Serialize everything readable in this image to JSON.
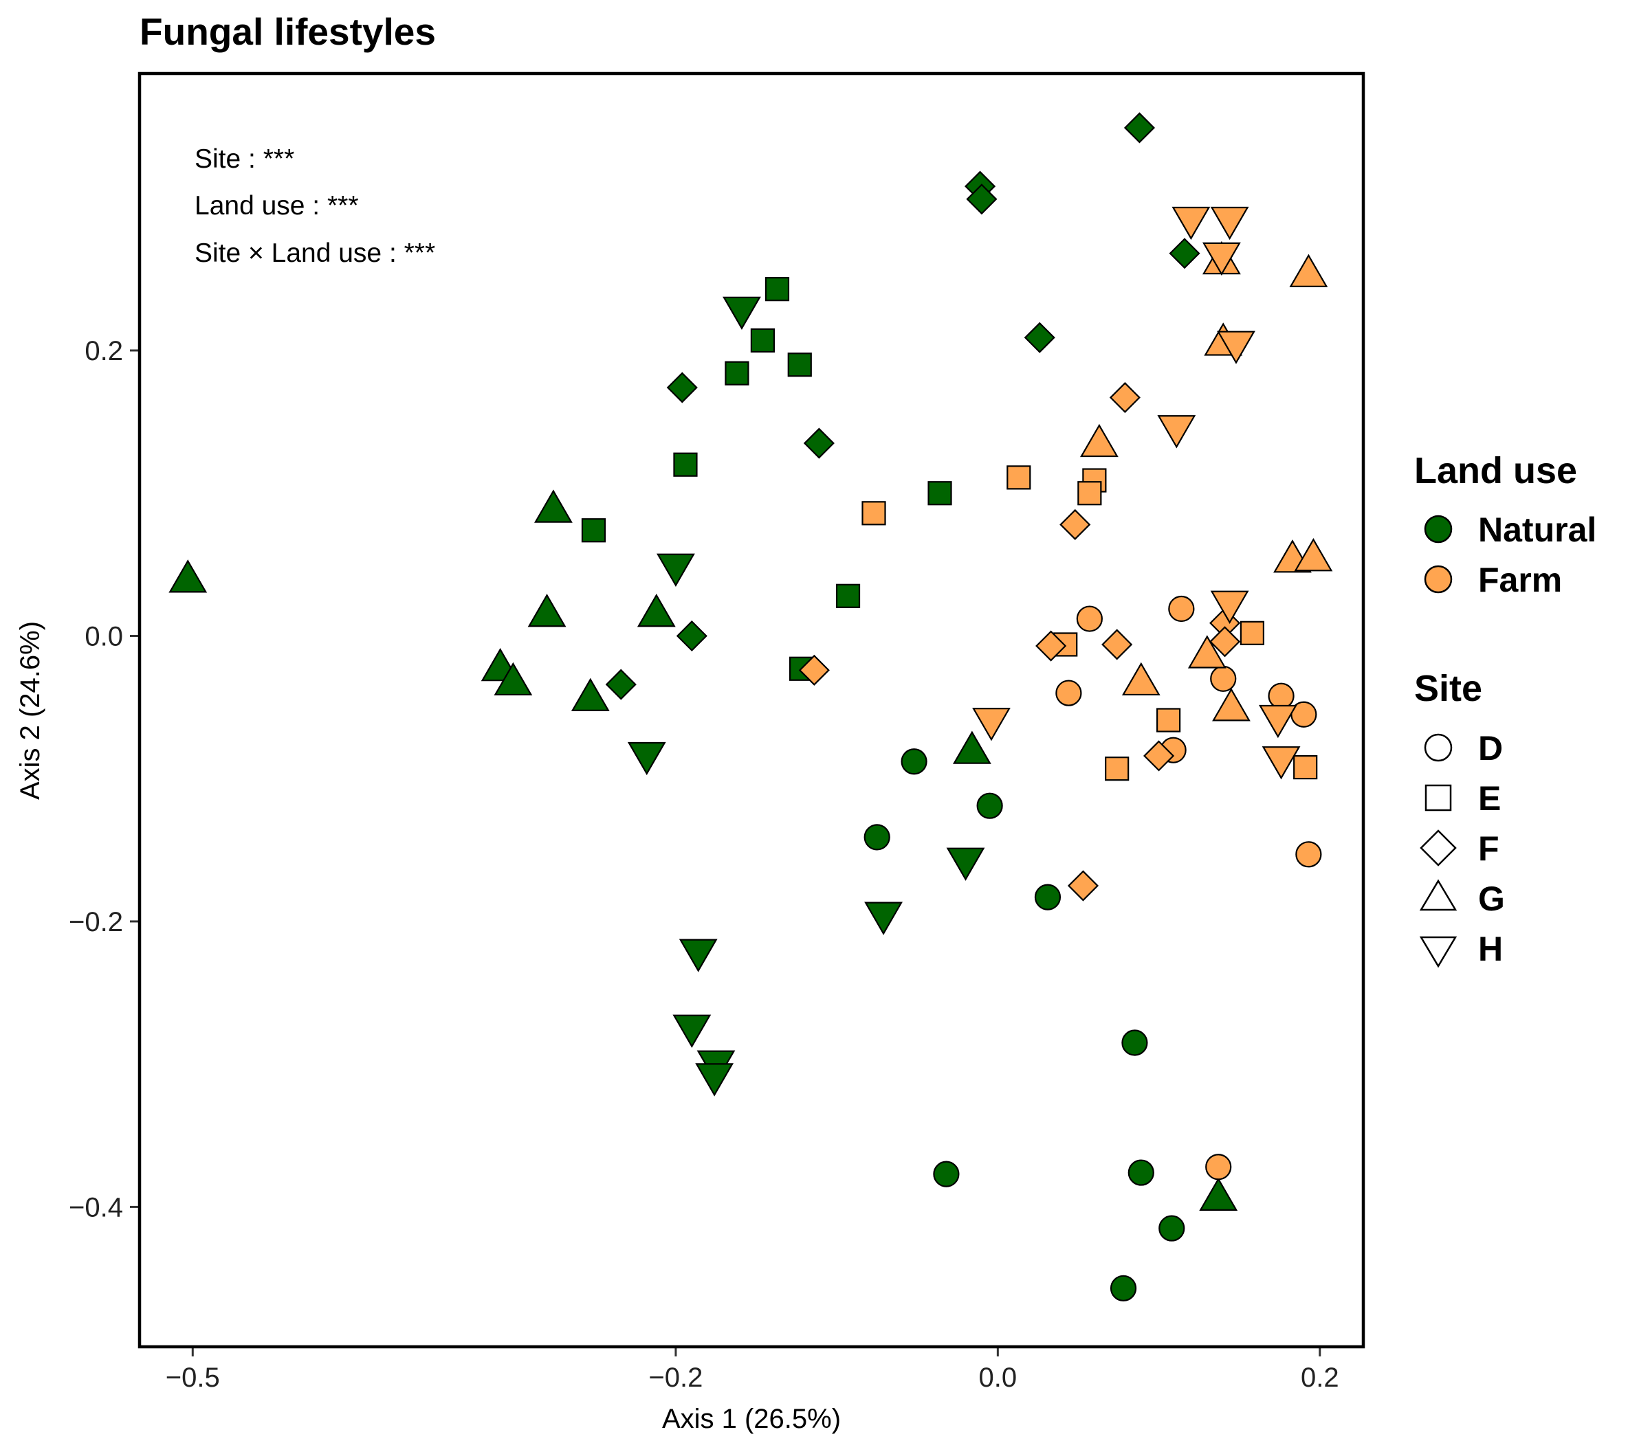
{
  "chart_data": {
    "type": "scatter",
    "title": "Fungal lifestyles",
    "xlabel": "Axis 1 (26.5%)",
    "ylabel": "Axis 2 (24.6%)",
    "xlim": [
      -0.533,
      0.227
    ],
    "ylim": [
      -0.498,
      0.394
    ],
    "xticks": [
      -0.5,
      -0.2,
      0.0,
      0.2
    ],
    "xtick_labels": [
      "−0.5",
      "−0.2",
      "0.0",
      "0.2"
    ],
    "yticks": [
      -0.4,
      -0.2,
      0.0,
      0.2
    ],
    "ytick_labels": [
      "−0.4",
      "−0.2",
      "0.0",
      "0.2"
    ],
    "grid": false,
    "legend_position": "right",
    "annotations": [
      "Site : ***",
      "Land use : ***",
      "Site × Land use : ***"
    ],
    "legend": {
      "land_use_title": "Land use",
      "land_use": [
        {
          "label": "Natural",
          "color": "#006400"
        },
        {
          "label": "Farm",
          "color": "#FFA550"
        }
      ],
      "site_title": "Site",
      "site": [
        {
          "label": "D",
          "shape": "circle"
        },
        {
          "label": "E",
          "shape": "square"
        },
        {
          "label": "F",
          "shape": "diamond"
        },
        {
          "label": "G",
          "shape": "triangle-up"
        },
        {
          "label": "H",
          "shape": "triangle-down"
        }
      ]
    },
    "series": [
      {
        "land_use": "Natural",
        "site": "D",
        "points": [
          [
            -0.052,
            -0.088
          ],
          [
            -0.075,
            -0.141
          ],
          [
            -0.005,
            -0.119
          ],
          [
            0.031,
            -0.183
          ],
          [
            -0.032,
            -0.377
          ],
          [
            0.085,
            -0.285
          ],
          [
            0.089,
            -0.376
          ],
          [
            0.108,
            -0.415
          ],
          [
            0.078,
            -0.457
          ]
        ]
      },
      {
        "land_use": "Natural",
        "site": "E",
        "points": [
          [
            -0.137,
            0.243
          ],
          [
            -0.146,
            0.207
          ],
          [
            -0.162,
            0.184
          ],
          [
            -0.123,
            0.19
          ],
          [
            -0.194,
            0.12
          ],
          [
            -0.251,
            0.074
          ],
          [
            -0.036,
            0.1
          ],
          [
            -0.093,
            0.028
          ],
          [
            -0.122,
            -0.023
          ]
        ]
      },
      {
        "land_use": "Natural",
        "site": "F",
        "points": [
          [
            0.088,
            0.356
          ],
          [
            -0.011,
            0.315
          ],
          [
            -0.01,
            0.306
          ],
          [
            0.116,
            0.268
          ],
          [
            0.026,
            0.209
          ],
          [
            -0.196,
            0.174
          ],
          [
            -0.111,
            0.135
          ],
          [
            -0.19,
            0.0
          ],
          [
            -0.234,
            -0.034
          ]
        ]
      },
      {
        "land_use": "Natural",
        "site": "G",
        "points": [
          [
            -0.503,
            0.04
          ],
          [
            -0.276,
            0.089
          ],
          [
            -0.28,
            0.016
          ],
          [
            -0.212,
            0.016
          ],
          [
            -0.309,
            -0.022
          ],
          [
            -0.301,
            -0.032
          ],
          [
            -0.253,
            -0.043
          ],
          [
            -0.016,
            -0.08
          ],
          [
            0.137,
            -0.393
          ]
        ]
      },
      {
        "land_use": "Natural",
        "site": "H",
        "points": [
          [
            -0.159,
            0.228
          ],
          [
            -0.2,
            0.048
          ],
          [
            -0.218,
            -0.084
          ],
          [
            -0.02,
            -0.158
          ],
          [
            -0.071,
            -0.196
          ],
          [
            -0.186,
            -0.222
          ],
          [
            -0.19,
            -0.275
          ],
          [
            -0.175,
            -0.3
          ],
          [
            -0.176,
            -0.309
          ]
        ]
      },
      {
        "land_use": "Farm",
        "site": "D",
        "points": [
          [
            0.057,
            0.012
          ],
          [
            0.114,
            0.019
          ],
          [
            0.044,
            -0.04
          ],
          [
            0.14,
            -0.03
          ],
          [
            0.176,
            -0.042
          ],
          [
            0.19,
            -0.055
          ],
          [
            0.109,
            -0.08
          ],
          [
            0.193,
            -0.153
          ],
          [
            0.137,
            -0.372
          ]
        ]
      },
      {
        "land_use": "Farm",
        "site": "E",
        "points": [
          [
            0.013,
            0.111
          ],
          [
            0.06,
            0.109
          ],
          [
            0.057,
            0.1
          ],
          [
            -0.077,
            0.086
          ],
          [
            0.158,
            0.002
          ],
          [
            0.042,
            -0.006
          ],
          [
            0.106,
            -0.059
          ],
          [
            0.074,
            -0.093
          ],
          [
            0.191,
            -0.092
          ]
        ]
      },
      {
        "land_use": "Farm",
        "site": "F",
        "points": [
          [
            0.079,
            0.167
          ],
          [
            0.048,
            0.078
          ],
          [
            0.141,
            0.009
          ],
          [
            0.141,
            -0.004
          ],
          [
            0.033,
            -0.007
          ],
          [
            0.074,
            -0.006
          ],
          [
            -0.114,
            -0.024
          ],
          [
            0.1,
            -0.084
          ],
          [
            0.053,
            -0.175
          ]
        ]
      },
      {
        "land_use": "Farm",
        "site": "G",
        "points": [
          [
            0.193,
            0.254
          ],
          [
            0.139,
            0.263
          ],
          [
            0.14,
            0.206
          ],
          [
            0.063,
            0.135
          ],
          [
            0.183,
            0.054
          ],
          [
            0.196,
            0.055
          ],
          [
            0.13,
            -0.013
          ],
          [
            0.089,
            -0.032
          ],
          [
            0.145,
            -0.05
          ]
        ]
      },
      {
        "land_use": "Farm",
        "site": "H",
        "points": [
          [
            0.12,
            0.291
          ],
          [
            0.144,
            0.291
          ],
          [
            0.139,
            0.266
          ],
          [
            0.148,
            0.204
          ],
          [
            0.111,
            0.145
          ],
          [
            0.144,
            0.022
          ],
          [
            0.174,
            -0.058
          ],
          [
            0.176,
            -0.087
          ],
          [
            -0.004,
            -0.06
          ]
        ]
      }
    ]
  }
}
